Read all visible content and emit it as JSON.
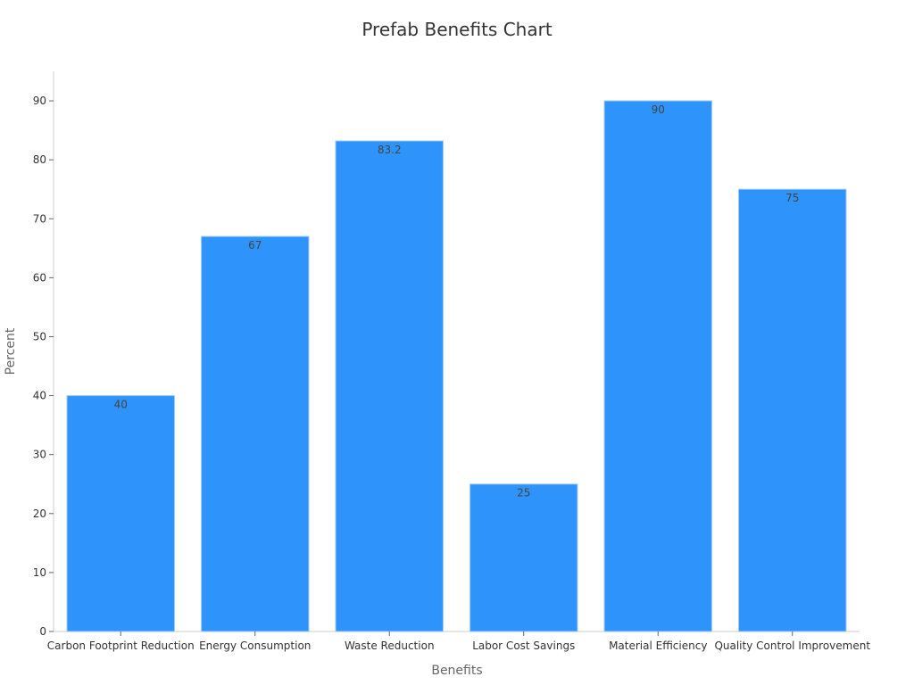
{
  "chart_data": {
    "type": "bar",
    "title": "Prefab Benefits Chart",
    "xlabel": "Benefits",
    "ylabel": "Percent",
    "categories": [
      "Carbon Footprint Reduction",
      "Energy Consumption",
      "Waste Reduction",
      "Labor Cost Savings",
      "Material Efficiency",
      "Quality Control Improvement"
    ],
    "values": [
      40,
      67,
      83.2,
      25,
      90,
      75
    ],
    "data_labels": [
      "40",
      "67",
      "83.2",
      "25",
      "90",
      "75"
    ],
    "ylim": [
      0,
      95
    ],
    "yticks": [
      0,
      10,
      20,
      30,
      40,
      50,
      60,
      70,
      80,
      90
    ],
    "bar_color": "#2e93fa",
    "grid": false,
    "legend": "none"
  }
}
